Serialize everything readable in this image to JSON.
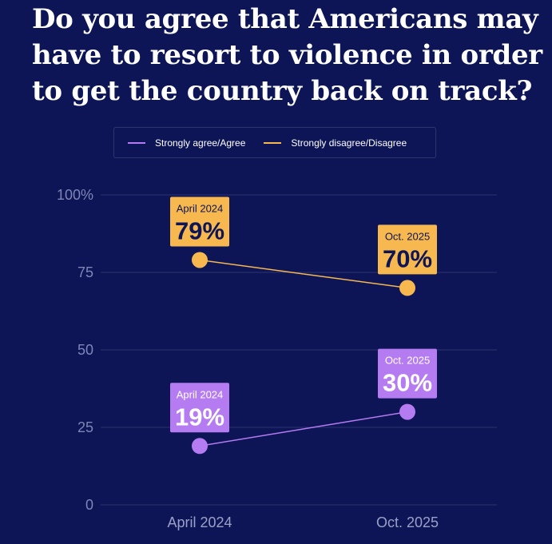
{
  "chart_data": {
    "type": "line",
    "title": "Do you agree that Americans may have to resort to violence in order to get the country back on track?",
    "categories": [
      "April 2024",
      "Oct. 2025"
    ],
    "series": [
      {
        "name": "Strongly agree/Agree",
        "values": [
          19,
          30
        ],
        "color": "#b57cf2",
        "labels": [
          {
            "period": "April 2024",
            "value": "19%"
          },
          {
            "period": "Oct. 2025",
            "value": "30%"
          }
        ]
      },
      {
        "name": "Strongly disagree/Disagree",
        "values": [
          79,
          70
        ],
        "color": "#f6b84f",
        "labels": [
          {
            "period": "April 2024",
            "value": "79%"
          },
          {
            "period": "Oct. 2025",
            "value": "70%"
          }
        ]
      }
    ],
    "yticks": [
      "100%",
      "75",
      "50",
      "25",
      "0"
    ],
    "ylim": [
      0,
      100
    ],
    "grid": true,
    "legend_position": "top-center"
  }
}
